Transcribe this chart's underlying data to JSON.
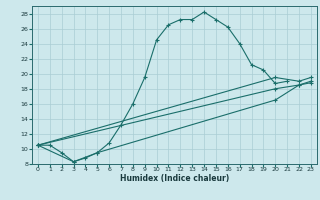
{
  "xlabel": "Humidex (Indice chaleur)",
  "bg_color": "#cde8ec",
  "grid_color": "#aacdd4",
  "line_color": "#1a6e6a",
  "xlim": [
    -0.5,
    23.5
  ],
  "ylim": [
    8,
    29
  ],
  "xticks": [
    0,
    1,
    2,
    3,
    4,
    5,
    6,
    7,
    8,
    9,
    10,
    11,
    12,
    13,
    14,
    15,
    16,
    17,
    18,
    19,
    20,
    21,
    22,
    23
  ],
  "yticks": [
    8,
    10,
    12,
    14,
    16,
    18,
    20,
    22,
    24,
    26,
    28
  ],
  "curve": {
    "x": [
      0,
      1,
      2,
      3,
      4,
      5,
      6,
      7,
      8,
      9,
      10,
      11,
      12,
      13,
      14,
      15,
      16,
      17,
      18,
      19,
      20,
      21
    ],
    "y": [
      10.5,
      10.5,
      9.5,
      8.3,
      8.8,
      9.5,
      10.8,
      13.2,
      16.0,
      19.5,
      24.5,
      26.5,
      27.2,
      27.2,
      28.2,
      27.2,
      26.2,
      24.0,
      21.2,
      20.5,
      18.7,
      19.0
    ]
  },
  "line1": {
    "x": [
      0,
      20,
      22,
      23
    ],
    "y": [
      10.5,
      19.5,
      19.0,
      19.5
    ]
  },
  "line2": {
    "x": [
      0,
      20,
      22,
      23
    ],
    "y": [
      10.5,
      18.0,
      18.5,
      19.0
    ]
  },
  "line3": {
    "x": [
      0,
      3,
      5,
      20,
      22,
      23
    ],
    "y": [
      10.5,
      8.3,
      9.5,
      16.5,
      18.5,
      18.8
    ]
  }
}
